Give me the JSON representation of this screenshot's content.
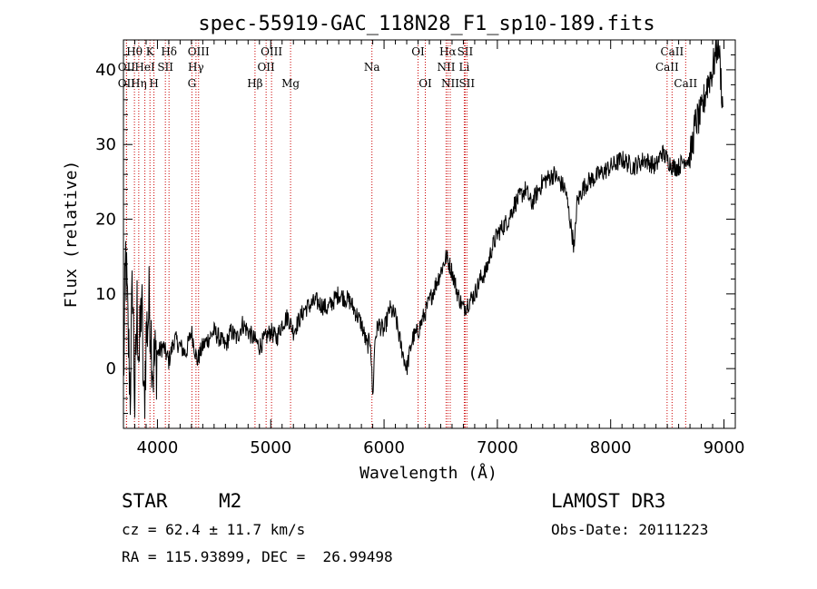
{
  "chart_data": {
    "type": "line",
    "title": "spec-55919-GAC_118N28_F1_sp10-189.fits",
    "xlabel": "Wavelength (Å)",
    "ylabel": "Flux (relative)",
    "xlim": [
      3700,
      9100
    ],
    "ylim": [
      -8,
      44
    ],
    "xticks": [
      4000,
      5000,
      6000,
      7000,
      8000,
      9000
    ],
    "yticks": [
      0,
      10,
      20,
      30,
      40
    ],
    "series": [
      {
        "name": "flux",
        "x": [
          3700,
          3720,
          3740,
          3760,
          3780,
          3800,
          3820,
          3840,
          3860,
          3880,
          3900,
          3930,
          3960,
          4000,
          4050,
          4100,
          4150,
          4200,
          4250,
          4300,
          4350,
          4400,
          4450,
          4500,
          4550,
          4600,
          4650,
          4700,
          4750,
          4800,
          4850,
          4900,
          4950,
          5000,
          5050,
          5100,
          5150,
          5200,
          5300,
          5400,
          5500,
          5600,
          5700,
          5800,
          5850,
          5880,
          5900,
          5920,
          5950,
          6000,
          6050,
          6100,
          6150,
          6200,
          6250,
          6300,
          6350,
          6400,
          6450,
          6500,
          6550,
          6600,
          6650,
          6700,
          6750,
          6800,
          6850,
          6900,
          6950,
          7000,
          7050,
          7100,
          7150,
          7200,
          7250,
          7300,
          7400,
          7500,
          7600,
          7650,
          7680,
          7700,
          7750,
          7800,
          7900,
          8000,
          8100,
          8200,
          8300,
          8400,
          8450,
          8500,
          8550,
          8600,
          8650,
          8700,
          8750,
          8800,
          8850,
          8900,
          8950,
          8990
        ],
        "y": [
          -2,
          15,
          5,
          -3,
          12,
          -5,
          8,
          1,
          10,
          -6,
          4,
          9,
          0,
          2,
          3,
          1,
          4,
          3,
          2,
          5,
          1,
          3,
          4,
          5,
          4,
          3,
          5,
          4,
          6,
          5,
          4,
          3,
          4,
          5,
          4,
          6,
          7,
          5,
          8,
          9,
          8,
          10,
          9,
          6,
          3,
          4,
          -4,
          4,
          6,
          5,
          8,
          7,
          3,
          0,
          4,
          5,
          7,
          9,
          11,
          13,
          15,
          13,
          10,
          8,
          9,
          10,
          12,
          13,
          16,
          18,
          19,
          20,
          22,
          23,
          24,
          22,
          25,
          26,
          24,
          19,
          16,
          22,
          24,
          25,
          26,
          27,
          28,
          27,
          28,
          27,
          29,
          28,
          27,
          27,
          28,
          28,
          33,
          34,
          38,
          40,
          44,
          35
        ],
        "color": "#000000"
      }
    ],
    "spectral_lines": [
      {
        "label": "Hθ",
        "x": 3797,
        "row": 0
      },
      {
        "label": "OII",
        "x": 3727,
        "row": 1
      },
      {
        "label": "OII",
        "x": 3727,
        "row": 2
      },
      {
        "label": "K",
        "x": 3934,
        "row": 0
      },
      {
        "label": "HeI",
        "x": 3889,
        "row": 1
      },
      {
        "label": "Hη",
        "x": 3835,
        "row": 2
      },
      {
        "label": "SII",
        "x": 4070,
        "row": 1
      },
      {
        "label": "H",
        "x": 3969,
        "row": 2
      },
      {
        "label": "Hδ",
        "x": 4102,
        "row": 0
      },
      {
        "label": "OIII",
        "x": 4363,
        "row": 0
      },
      {
        "label": "Hγ",
        "x": 4340,
        "row": 1
      },
      {
        "label": "G",
        "x": 4304,
        "row": 2
      },
      {
        "label": "OIII",
        "x": 5007,
        "row": 0
      },
      {
        "label": "OII",
        "x": 4959,
        "row": 1
      },
      {
        "label": "Hβ",
        "x": 4861,
        "row": 2
      },
      {
        "label": "Mg",
        "x": 5175,
        "row": 2
      },
      {
        "label": "Na",
        "x": 5893,
        "row": 1
      },
      {
        "label": "OI",
        "x": 6300,
        "row": 0
      },
      {
        "label": "OI",
        "x": 6364,
        "row": 2
      },
      {
        "label": "Hα",
        "x": 6563,
        "row": 0
      },
      {
        "label": "NII",
        "x": 6548,
        "row": 1
      },
      {
        "label": "NII",
        "x": 6584,
        "row": 2
      },
      {
        "label": "SII",
        "x": 6716,
        "row": 0
      },
      {
        "label": "Li",
        "x": 6708,
        "row": 1
      },
      {
        "label": "SII",
        "x": 6731,
        "row": 2
      },
      {
        "label": "CaII",
        "x": 8542,
        "row": 0
      },
      {
        "label": "CaII",
        "x": 8498,
        "row": 1
      },
      {
        "label": "CaII",
        "x": 8662,
        "row": 2
      }
    ]
  },
  "info": {
    "class": "STAR",
    "subclass": "M2",
    "survey": "LAMOST DR3",
    "cz": "cz = 62.4 ± 11.7 km/s",
    "obs_date": "Obs-Date: 20111223",
    "coords": "RA = 115.93899, DEC =  26.99498"
  },
  "colors": {
    "spectral_line": "#cc0000",
    "flux": "#000000",
    "axes": "#000000"
  }
}
